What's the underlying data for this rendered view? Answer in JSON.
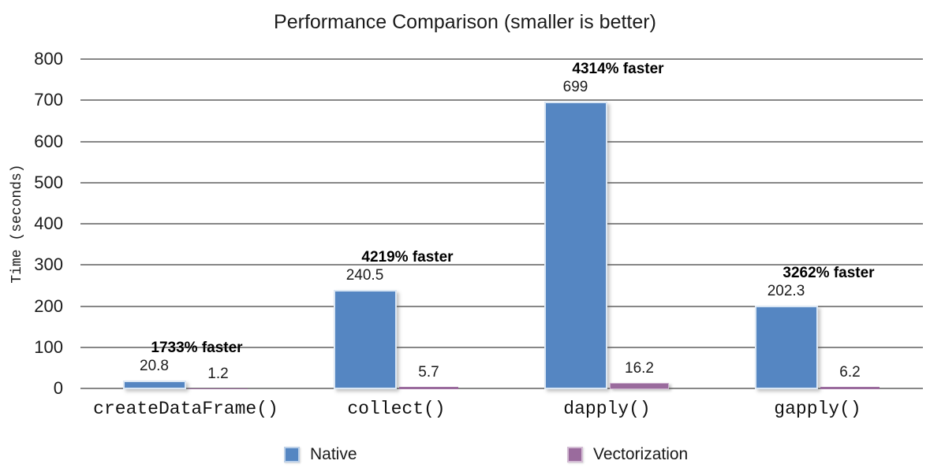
{
  "chart_data": {
    "type": "bar",
    "title": "Performance Comparison (smaller is better)",
    "xlabel": "",
    "ylabel": "Time (seconds)",
    "ylim": [
      0,
      800
    ],
    "yticks": [
      0,
      100,
      200,
      300,
      400,
      500,
      600,
      700,
      800
    ],
    "grid": true,
    "legend_position": "bottom",
    "categories": [
      "createDataFrame()",
      "collect()",
      "dapply()",
      "gapply()"
    ],
    "series": [
      {
        "name": "Native",
        "color": "#5586c2",
        "border_color": "#dbe7f4",
        "values": [
          20.8,
          240.5,
          699,
          202.3
        ],
        "labels": [
          "20.8",
          "240.5",
          "699",
          "202.3"
        ]
      },
      {
        "name": "Vectorization",
        "color": "#9a6b9d",
        "border_color": "#cdb3cf",
        "values": [
          1.2,
          5.7,
          16.2,
          6.2
        ],
        "labels": [
          "1.2",
          "5.7",
          "16.2",
          "6.2"
        ]
      }
    ],
    "annotations": [
      "1733% faster",
      "4219% faster",
      "4314% faster",
      "3262% faster"
    ],
    "gridline_color": "#878787",
    "text_color": "#1a1a1a"
  }
}
